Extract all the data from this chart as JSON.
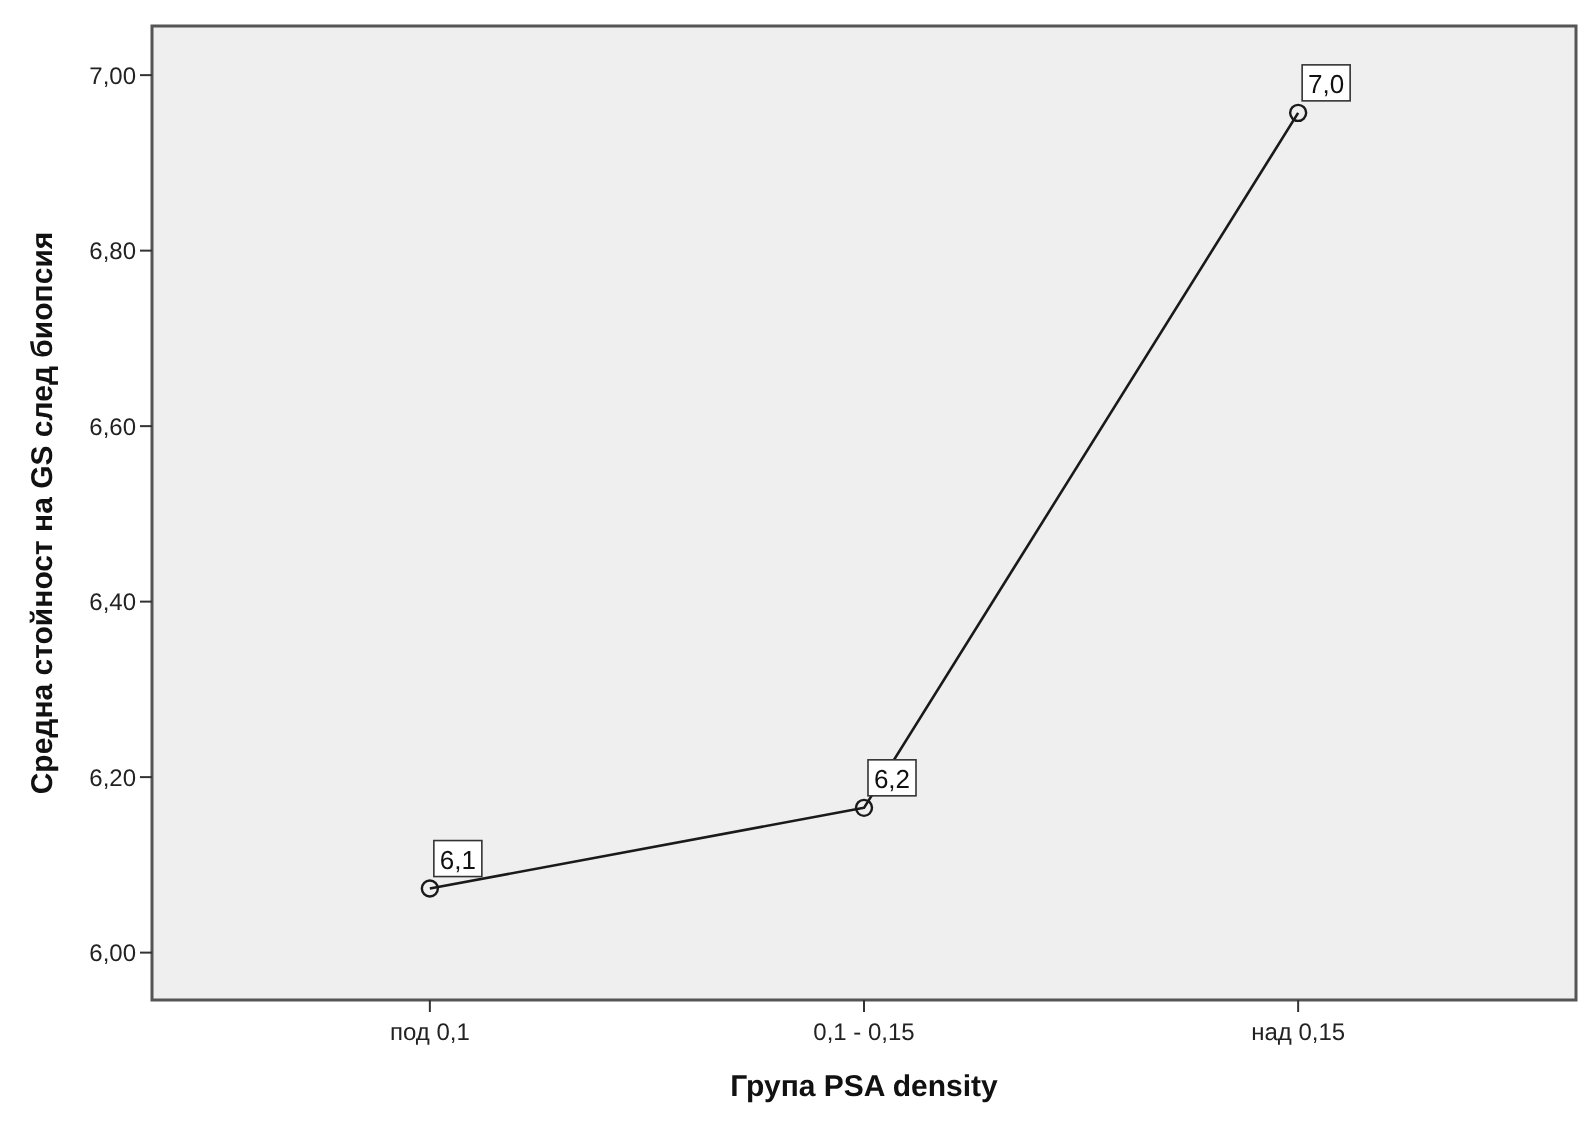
{
  "chart_data": {
    "type": "line",
    "xlabel": "Група PSA density",
    "ylabel": "Средна стойност на GS след биопсия",
    "categories": [
      "под 0,1",
      "0,1 - 0,15",
      "над 0,15"
    ],
    "series": [
      {
        "color": "#1a1a1a",
        "values": [
          6.073,
          6.165,
          6.957
        ],
        "value_labels": [
          "6,1",
          "6,2",
          "7,0"
        ]
      }
    ],
    "ylim": [
      5.946,
      7.056
    ],
    "yticks": [
      {
        "value": 6,
        "label": "6,00"
      },
      {
        "value": 6.2,
        "label": "6,20"
      },
      {
        "value": 6.4,
        "label": "6,40"
      },
      {
        "value": 6.6,
        "label": "6,60"
      },
      {
        "value": 6.8,
        "label": "6,80"
      },
      {
        "value": 7,
        "label": "7,00"
      }
    ],
    "marker": "circle",
    "line_style": "solid"
  }
}
